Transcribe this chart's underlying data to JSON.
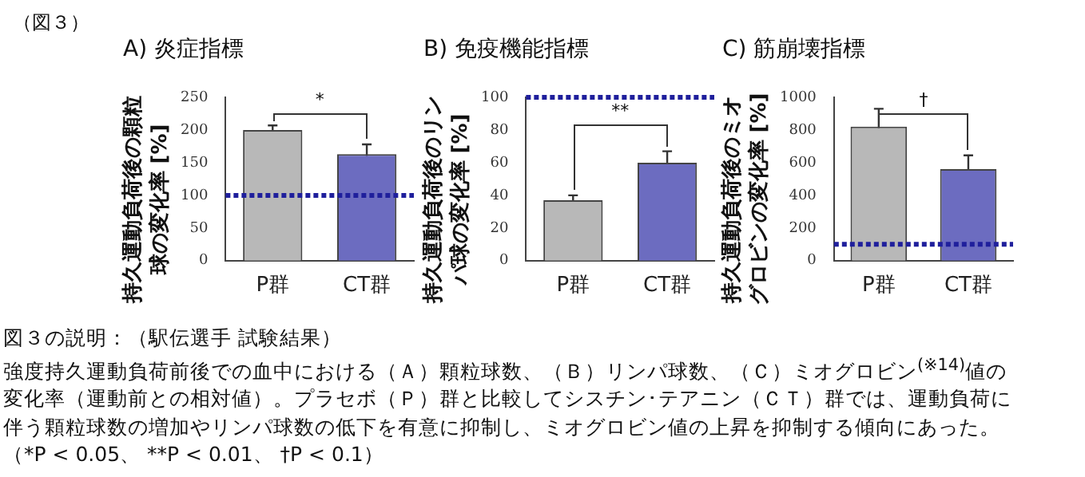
{
  "chart_data": [
    {
      "type": "bar",
      "title": "A) 炎症指標",
      "ylabel": "持久運動負荷後の顆粒球の変化率 [%]",
      "categories": [
        "P群",
        "CT群"
      ],
      "values": [
        200,
        163
      ],
      "errors": [
        7,
        15
      ],
      "colors": [
        "#b8b8b8",
        "#6c6cc0"
      ],
      "ylim": [
        0,
        250
      ],
      "yticks": [
        0,
        50,
        100,
        150,
        200,
        250
      ],
      "grid": false,
      "legend": false,
      "ref_lines": [
        {
          "axis": "y",
          "value": 100,
          "color": "#1f1f9c",
          "line_style": "dotted"
        }
      ],
      "annotations": [
        "*",
        "（図３）"
      ]
    },
    {
      "type": "bar",
      "title": "B) 免疫機能指標",
      "ylabel": "持久運動負荷後のリンパ球の変化率 [%]",
      "categories": [
        "P群",
        "CT群"
      ],
      "values": [
        37,
        60
      ],
      "errors": [
        3,
        7
      ],
      "colors": [
        "#b8b8b8",
        "#6c6cc0"
      ],
      "ylim": [
        0,
        100
      ],
      "yticks": [
        0,
        20,
        40,
        60,
        80,
        100
      ],
      "grid": false,
      "legend": false,
      "ref_lines": [
        {
          "axis": "y",
          "value": 100,
          "color": "#1f1f9c",
          "line_style": "dotted"
        }
      ],
      "annotations": [
        "**"
      ]
    },
    {
      "type": "bar",
      "title": "C) 筋崩壊指標",
      "ylabel": "持久運動負荷後のミオグロビンの変化率 [%]",
      "categories": [
        "P群",
        "CT群"
      ],
      "values": [
        820,
        560
      ],
      "errors": [
        110,
        85
      ],
      "colors": [
        "#b8b8b8",
        "#6c6cc0"
      ],
      "ylim": [
        0,
        1000
      ],
      "yticks": [
        0,
        200,
        400,
        600,
        800,
        1000
      ],
      "grid": false,
      "legend": false,
      "ref_lines": [
        {
          "axis": "y",
          "value": 100,
          "color": "#1f1f9c",
          "line_style": "dotted"
        }
      ],
      "annotations": [
        "†",
        "図３の説明：（駅伝選手 試験結果）",
        "強度持久運動負荷前後での血中における（Ａ）顆粒球数、（Ｂ）リンパ球数、（Ｃ）ミオグロビン$^{(※14)}$値の",
        "変化率（運動前との相対値）。プラセボ（Ｐ）群と比較してシスチン･テアニン（ＣＴ）群では、運動負荷に",
        "伴う顆粒球数の増加やリンパ球数の低下を有意に抑制し、ミオグロビン値の上昇を抑制する傾向にあった。",
        "（*P < 0.05、 **P < 0.01、 †P < 0.1）"
      ]
    }
  ]
}
